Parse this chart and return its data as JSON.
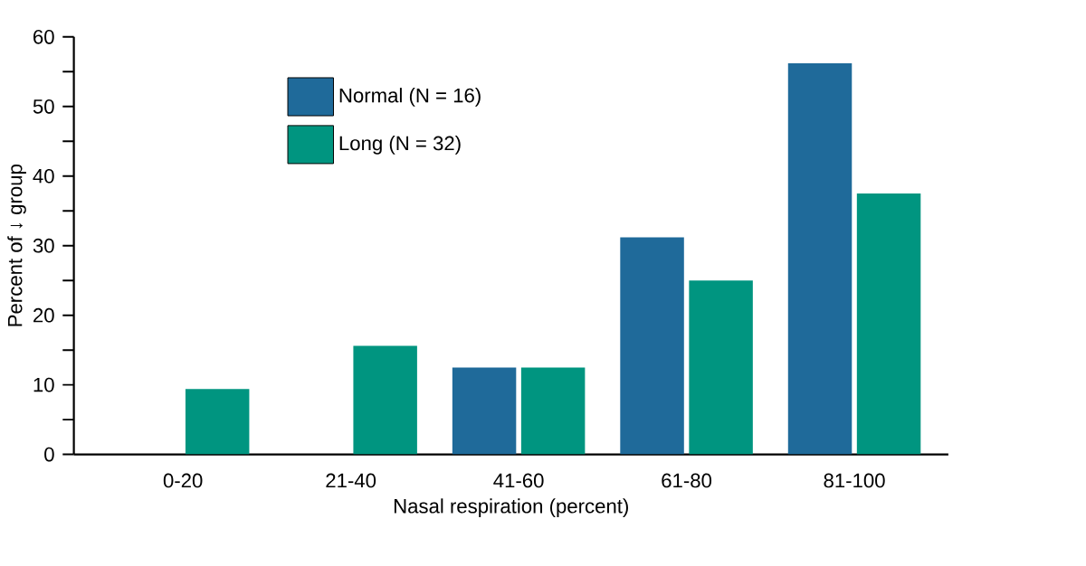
{
  "chart_data": {
    "type": "bar",
    "categories": [
      "0-20",
      "21-40",
      "41-60",
      "61-80",
      "81-100"
    ],
    "series": [
      {
        "name": "Normal (N = 16)",
        "color": "#1f6a9a",
        "values": [
          0,
          0,
          12.5,
          31.2,
          56.2
        ]
      },
      {
        "name": "Long (N = 32)",
        "color": "#009580",
        "values": [
          9.4,
          15.6,
          12.5,
          25,
          37.5
        ]
      }
    ],
    "xlabel": "Nasal respiration (percent)",
    "ylabel": "Percent of ↓ group",
    "ylim": [
      0,
      60
    ],
    "yticks": [
      0,
      {
        "value": 5,
        "label": null
      },
      10,
      {
        "value": 15,
        "label": null
      },
      20,
      {
        "value": 25,
        "label": null
      },
      30,
      {
        "value": 35,
        "label": null
      },
      40,
      {
        "value": 45,
        "label": null
      },
      50,
      {
        "value": 55,
        "label": null
      },
      60
    ],
    "legend": "top",
    "grid": false
  }
}
